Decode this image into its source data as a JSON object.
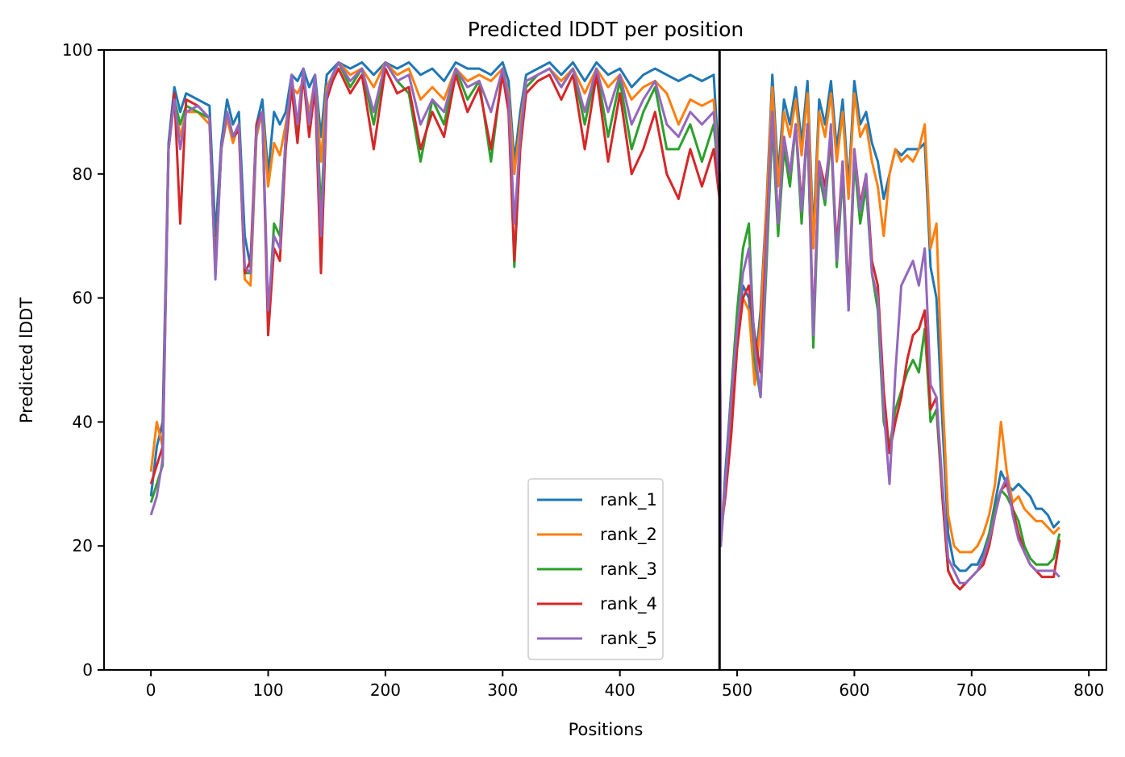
{
  "chart_data": {
    "type": "line",
    "title": "Predicted lDDT per position",
    "xlabel": "Positions",
    "ylabel": "Predicted lDDT",
    "xlim": [
      -40,
      815
    ],
    "ylim": [
      0,
      100
    ],
    "xticks": [
      0,
      100,
      200,
      300,
      400,
      500,
      600,
      700,
      800
    ],
    "yticks": [
      0,
      20,
      40,
      60,
      80,
      100
    ],
    "grid": false,
    "legend_position": "lower-center",
    "vline_x": 485,
    "series": [
      {
        "name": "rank_1",
        "color": "#1f77b4",
        "x": [
          0,
          5,
          10,
          15,
          20,
          25,
          30,
          40,
          50,
          55,
          60,
          65,
          70,
          75,
          80,
          85,
          90,
          95,
          100,
          105,
          110,
          115,
          120,
          125,
          130,
          135,
          140,
          145,
          150,
          155,
          160,
          170,
          180,
          190,
          200,
          210,
          220,
          230,
          240,
          250,
          260,
          270,
          280,
          290,
          300,
          305,
          310,
          315,
          320,
          330,
          340,
          350,
          360,
          370,
          380,
          390,
          400,
          410,
          420,
          430,
          440,
          450,
          460,
          470,
          480,
          485,
          486,
          490,
          495,
          500,
          505,
          510,
          515,
          520,
          525,
          530,
          535,
          540,
          545,
          550,
          555,
          560,
          565,
          570,
          575,
          580,
          585,
          590,
          595,
          600,
          605,
          610,
          615,
          620,
          625,
          630,
          635,
          640,
          645,
          650,
          655,
          660,
          665,
          670,
          675,
          680,
          685,
          690,
          695,
          700,
          705,
          710,
          715,
          720,
          725,
          730,
          735,
          740,
          745,
          750,
          755,
          760,
          765,
          770,
          775
        ],
        "y": [
          28,
          36,
          40,
          85,
          94,
          90,
          93,
          92,
          91,
          70,
          85,
          92,
          88,
          90,
          70,
          65,
          88,
          92,
          80,
          90,
          88,
          90,
          96,
          95,
          97,
          94,
          96,
          86,
          96,
          97,
          98,
          97,
          98,
          96,
          98,
          97,
          98,
          96,
          97,
          95,
          98,
          97,
          97,
          96,
          98,
          95,
          82,
          90,
          96,
          97,
          98,
          96,
          98,
          95,
          98,
          96,
          97,
          94,
          96,
          97,
          96,
          95,
          96,
          95,
          96,
          80,
          20,
          32,
          45,
          55,
          62,
          60,
          48,
          58,
          75,
          96,
          80,
          92,
          88,
          94,
          85,
          95,
          70,
          92,
          88,
          95,
          84,
          92,
          78,
          95,
          88,
          90,
          85,
          82,
          76,
          80,
          84,
          83,
          84,
          84,
          84,
          85,
          65,
          60,
          40,
          22,
          17,
          16,
          16,
          17,
          17,
          19,
          22,
          27,
          32,
          30,
          29,
          30,
          29,
          28,
          26,
          26,
          25,
          23,
          24
        ]
      },
      {
        "name": "rank_2",
        "color": "#ff7f0e",
        "x": [
          0,
          5,
          10,
          15,
          20,
          25,
          30,
          40,
          50,
          55,
          60,
          65,
          70,
          75,
          80,
          85,
          90,
          95,
          100,
          105,
          110,
          115,
          120,
          125,
          130,
          135,
          140,
          145,
          150,
          155,
          160,
          170,
          180,
          190,
          200,
          210,
          220,
          230,
          240,
          250,
          260,
          270,
          280,
          290,
          300,
          305,
          310,
          315,
          320,
          330,
          340,
          350,
          360,
          370,
          380,
          390,
          400,
          410,
          420,
          430,
          440,
          450,
          460,
          470,
          480,
          485,
          486,
          490,
          495,
          500,
          505,
          510,
          515,
          520,
          525,
          530,
          535,
          540,
          545,
          550,
          555,
          560,
          565,
          570,
          575,
          580,
          585,
          590,
          595,
          600,
          605,
          610,
          615,
          620,
          625,
          630,
          635,
          640,
          645,
          650,
          655,
          660,
          665,
          670,
          675,
          680,
          685,
          690,
          695,
          700,
          705,
          710,
          715,
          720,
          725,
          730,
          735,
          740,
          745,
          750,
          755,
          760,
          765,
          770,
          775
        ],
        "y": [
          32,
          40,
          36,
          84,
          92,
          86,
          90,
          90,
          88,
          65,
          84,
          89,
          85,
          88,
          63,
          62,
          86,
          90,
          78,
          85,
          83,
          88,
          94,
          93,
          95,
          90,
          95,
          82,
          94,
          96,
          98,
          96,
          97,
          94,
          98,
          96,
          97,
          92,
          94,
          92,
          97,
          95,
          96,
          95,
          97,
          93,
          80,
          88,
          95,
          96,
          97,
          95,
          97,
          93,
          97,
          94,
          96,
          92,
          94,
          95,
          93,
          88,
          92,
          91,
          92,
          78,
          22,
          30,
          42,
          52,
          60,
          58,
          46,
          56,
          74,
          94,
          78,
          90,
          86,
          92,
          83,
          93,
          68,
          90,
          86,
          93,
          82,
          90,
          76,
          93,
          86,
          88,
          82,
          78,
          70,
          80,
          84,
          82,
          83,
          82,
          84,
          88,
          68,
          72,
          45,
          25,
          20,
          19,
          19,
          19,
          20,
          22,
          25,
          30,
          40,
          32,
          27,
          28,
          26,
          25,
          24,
          24,
          23,
          22,
          23
        ]
      },
      {
        "name": "rank_3",
        "color": "#2ca02c",
        "x": [
          0,
          5,
          10,
          15,
          20,
          25,
          30,
          40,
          50,
          55,
          60,
          65,
          70,
          75,
          80,
          85,
          90,
          95,
          100,
          105,
          110,
          115,
          120,
          125,
          130,
          135,
          140,
          145,
          150,
          155,
          160,
          170,
          180,
          190,
          200,
          210,
          220,
          230,
          240,
          250,
          260,
          270,
          280,
          290,
          300,
          305,
          310,
          315,
          320,
          330,
          340,
          350,
          360,
          370,
          380,
          390,
          400,
          410,
          420,
          430,
          440,
          450,
          460,
          470,
          480,
          485,
          486,
          490,
          495,
          500,
          505,
          510,
          515,
          520,
          525,
          530,
          535,
          540,
          545,
          550,
          555,
          560,
          565,
          570,
          575,
          580,
          585,
          590,
          595,
          600,
          605,
          610,
          615,
          620,
          625,
          630,
          635,
          640,
          645,
          650,
          655,
          660,
          665,
          670,
          675,
          680,
          685,
          690,
          695,
          700,
          705,
          710,
          715,
          720,
          725,
          730,
          735,
          740,
          745,
          750,
          755,
          760,
          765,
          770,
          775
        ],
        "y": [
          27,
          30,
          33,
          84,
          92,
          88,
          91,
          90,
          89,
          65,
          84,
          90,
          86,
          88,
          64,
          64,
          87,
          90,
          56,
          72,
          70,
          86,
          94,
          86,
          96,
          88,
          95,
          74,
          92,
          96,
          98,
          94,
          97,
          88,
          98,
          95,
          93,
          82,
          92,
          88,
          97,
          92,
          95,
          82,
          97,
          92,
          65,
          85,
          94,
          96,
          97,
          94,
          97,
          88,
          97,
          86,
          95,
          84,
          90,
          94,
          84,
          84,
          88,
          82,
          88,
          78,
          20,
          30,
          45,
          58,
          68,
          72,
          50,
          44,
          65,
          88,
          70,
          84,
          78,
          88,
          72,
          88,
          52,
          80,
          75,
          86,
          65,
          80,
          58,
          82,
          72,
          78,
          64,
          58,
          40,
          36,
          42,
          45,
          48,
          50,
          48,
          55,
          40,
          42,
          28,
          16,
          14,
          13,
          14,
          15,
          16,
          18,
          22,
          26,
          29,
          28,
          26,
          24,
          20,
          18,
          17,
          17,
          17,
          18,
          22
        ]
      },
      {
        "name": "rank_4",
        "color": "#d62728",
        "x": [
          0,
          5,
          10,
          15,
          20,
          25,
          30,
          40,
          50,
          55,
          60,
          65,
          70,
          75,
          80,
          85,
          90,
          95,
          100,
          105,
          110,
          115,
          120,
          125,
          130,
          135,
          140,
          145,
          150,
          155,
          160,
          170,
          180,
          190,
          200,
          210,
          220,
          230,
          240,
          250,
          260,
          270,
          280,
          290,
          300,
          305,
          310,
          315,
          320,
          330,
          340,
          350,
          360,
          370,
          380,
          390,
          400,
          410,
          420,
          430,
          440,
          450,
          460,
          470,
          480,
          485,
          486,
          490,
          495,
          500,
          505,
          510,
          515,
          520,
          525,
          530,
          535,
          540,
          545,
          550,
          555,
          560,
          565,
          570,
          575,
          580,
          585,
          590,
          595,
          600,
          605,
          610,
          615,
          620,
          625,
          630,
          635,
          640,
          645,
          650,
          655,
          660,
          665,
          670,
          675,
          680,
          685,
          690,
          695,
          700,
          705,
          710,
          715,
          720,
          725,
          730,
          735,
          740,
          745,
          750,
          755,
          760,
          765,
          770,
          775
        ],
        "y": [
          30,
          33,
          36,
          84,
          93,
          72,
          92,
          91,
          89,
          64,
          84,
          90,
          86,
          87,
          64,
          66,
          88,
          90,
          54,
          68,
          66,
          84,
          94,
          85,
          96,
          86,
          94,
          64,
          92,
          95,
          97,
          93,
          96,
          84,
          97,
          93,
          94,
          84,
          90,
          86,
          96,
          90,
          94,
          84,
          96,
          90,
          66,
          84,
          93,
          95,
          96,
          92,
          96,
          84,
          96,
          82,
          93,
          80,
          84,
          90,
          80,
          76,
          84,
          78,
          84,
          76,
          22,
          28,
          38,
          52,
          60,
          62,
          54,
          48,
          70,
          90,
          72,
          86,
          80,
          88,
          75,
          88,
          55,
          82,
          78,
          86,
          68,
          82,
          60,
          84,
          75,
          80,
          66,
          62,
          45,
          35,
          40,
          44,
          50,
          54,
          55,
          58,
          42,
          44,
          28,
          16,
          14,
          13,
          14,
          15,
          16,
          17,
          20,
          25,
          29,
          30,
          26,
          22,
          19,
          17,
          16,
          15,
          15,
          15,
          21
        ]
      },
      {
        "name": "rank_5",
        "color": "#9467bd",
        "x": [
          0,
          5,
          10,
          15,
          20,
          25,
          30,
          40,
          50,
          55,
          60,
          65,
          70,
          75,
          80,
          85,
          90,
          95,
          100,
          105,
          110,
          115,
          120,
          125,
          130,
          135,
          140,
          145,
          150,
          155,
          160,
          170,
          180,
          190,
          200,
          210,
          220,
          230,
          240,
          250,
          260,
          270,
          280,
          290,
          300,
          305,
          310,
          315,
          320,
          330,
          340,
          350,
          360,
          370,
          380,
          390,
          400,
          410,
          420,
          430,
          440,
          450,
          460,
          470,
          480,
          485,
          486,
          490,
          495,
          500,
          505,
          510,
          515,
          520,
          525,
          530,
          535,
          540,
          545,
          550,
          555,
          560,
          565,
          570,
          575,
          580,
          585,
          590,
          595,
          600,
          605,
          610,
          615,
          620,
          625,
          630,
          635,
          640,
          645,
          650,
          655,
          660,
          665,
          670,
          675,
          680,
          685,
          690,
          695,
          700,
          705,
          710,
          715,
          720,
          725,
          730,
          735,
          740,
          745,
          750,
          755,
          760,
          765,
          770,
          775
        ],
        "y": [
          25,
          28,
          34,
          84,
          92,
          84,
          90,
          91,
          89,
          63,
          84,
          90,
          86,
          88,
          65,
          64,
          87,
          90,
          58,
          70,
          68,
          86,
          96,
          88,
          97,
          88,
          96,
          70,
          93,
          96,
          98,
          95,
          97,
          90,
          98,
          95,
          96,
          88,
          92,
          90,
          97,
          94,
          95,
          90,
          97,
          92,
          72,
          86,
          95,
          96,
          97,
          94,
          97,
          90,
          97,
          90,
          96,
          88,
          92,
          95,
          88,
          86,
          90,
          88,
          90,
          78,
          20,
          30,
          44,
          55,
          64,
          68,
          52,
          44,
          68,
          90,
          72,
          86,
          80,
          88,
          74,
          88,
          54,
          82,
          76,
          88,
          66,
          82,
          58,
          84,
          74,
          80,
          64,
          60,
          42,
          30,
          48,
          62,
          64,
          66,
          62,
          68,
          46,
          44,
          30,
          18,
          16,
          14,
          14,
          15,
          16,
          18,
          21,
          25,
          29,
          31,
          25,
          21,
          19,
          17,
          16,
          16,
          16,
          16,
          15
        ]
      }
    ]
  }
}
